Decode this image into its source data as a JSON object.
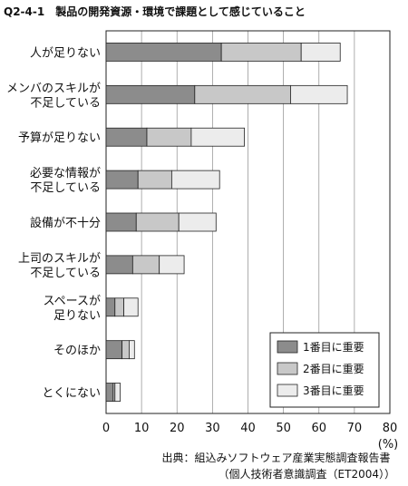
{
  "title": {
    "code": "Q2-4-1",
    "text": "製品の開発資源・環境で課題として感じていること"
  },
  "source": {
    "line1": "出典：組込みソフトウェア産業実態調査報告書",
    "line2": "（個人技術者意識調査（ET2004））"
  },
  "chart_data": {
    "type": "bar",
    "orientation": "horizontal",
    "stacked": true,
    "categories": [
      [
        "人が足りない"
      ],
      [
        "メンバのスキルが",
        "不足している"
      ],
      [
        "予算が足りない"
      ],
      [
        "必要な情報が",
        "不足している"
      ],
      [
        "設備が不十分"
      ],
      [
        "上司のスキルが",
        "不足している"
      ],
      [
        "スペースが",
        "足りない"
      ],
      [
        "そのほか"
      ],
      [
        "とくにない"
      ]
    ],
    "series": [
      {
        "name": "1番目に重要",
        "color": "#8c8c8c",
        "values": [
          32.5,
          25.0,
          11.5,
          9.0,
          8.5,
          7.5,
          2.5,
          4.5,
          2.0
        ]
      },
      {
        "name": "2番目に重要",
        "color": "#c8c8c8",
        "values": [
          22.5,
          27.0,
          12.5,
          9.5,
          12.0,
          7.5,
          2.5,
          2.0,
          0.5
        ]
      },
      {
        "name": "3番目に重要",
        "color": "#ececec",
        "values": [
          11.0,
          16.0,
          15.0,
          13.5,
          10.5,
          7.0,
          4.0,
          1.5,
          1.5
        ]
      }
    ],
    "xlim": [
      0,
      80
    ],
    "xticks": [
      0,
      10,
      20,
      30,
      40,
      50,
      60,
      70,
      80
    ],
    "xunit": "(%)",
    "grid": true,
    "legend_position": "bottom-right"
  }
}
